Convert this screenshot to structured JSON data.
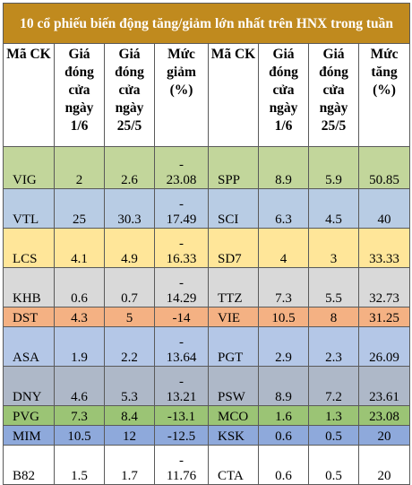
{
  "title": "10 cổ phiếu biến động tăng/giảm lớn nhất trên HNX trong tuần",
  "headers": [
    "Mã CK",
    "Giá đóng cửa ngày 1/6",
    "Giá đóng cửa ngày 25/5",
    "Mức giảm (%)",
    "Mã CK",
    "Giá đóng cửa ngày 1/6",
    "Giá đóng cửa ngày 25/5",
    "Mức tăng (%)"
  ],
  "rows": [
    {
      "dec_code": "VIG",
      "dec_close_1_6": "2",
      "dec_close_25_5": "2.6",
      "dec_dash": "-",
      "dec_pct": "23.08",
      "inc_code": "SPP",
      "inc_close_1_6": "8.9",
      "inc_close_25_5": "5.9",
      "inc_pct": "50.85",
      "color": "#c2d69b"
    },
    {
      "dec_code": "VTL",
      "dec_close_1_6": "25",
      "dec_close_25_5": "30.3",
      "dec_dash": "-",
      "dec_pct": "17.49",
      "inc_code": "SCI",
      "inc_close_1_6": "6.3",
      "inc_close_25_5": "4.5",
      "inc_pct": "40",
      "color": "#b8cce4"
    },
    {
      "dec_code": "LCS",
      "dec_close_1_6": "4.1",
      "dec_close_25_5": "4.9",
      "dec_dash": "-",
      "dec_pct": "16.33",
      "inc_code": "SD7",
      "inc_close_1_6": "4",
      "inc_close_25_5": "3",
      "inc_pct": "33.33",
      "color": "#ffe699"
    },
    {
      "dec_code": "KHB",
      "dec_close_1_6": "0.6",
      "dec_close_25_5": "0.7",
      "dec_dash": "-",
      "dec_pct": "14.29",
      "inc_code": "TTZ",
      "inc_close_1_6": "7.3",
      "inc_close_25_5": "5.5",
      "inc_pct": "32.73",
      "color": "#d9d9d9"
    },
    {
      "dec_code": "DST",
      "dec_close_1_6": "4.3",
      "dec_close_25_5": "5",
      "dec_dash": "",
      "dec_pct": "-14",
      "inc_code": "VIE",
      "inc_close_1_6": "10.5",
      "inc_close_25_5": "8",
      "inc_pct": "31.25",
      "color": "#f4b183"
    },
    {
      "dec_code": "ASA",
      "dec_close_1_6": "1.9",
      "dec_close_25_5": "2.2",
      "dec_dash": "-",
      "dec_pct": "13.64",
      "inc_code": "PGT",
      "inc_close_1_6": "2.9",
      "inc_close_25_5": "2.3",
      "inc_pct": "26.09",
      "color": "#b4c7e7"
    },
    {
      "dec_code": "DNY",
      "dec_close_1_6": "4.6",
      "dec_close_25_5": "5.3",
      "dec_dash": "-",
      "dec_pct": "13.21",
      "inc_code": "PSW",
      "inc_close_1_6": "8.9",
      "inc_close_25_5": "7.2",
      "inc_pct": "23.61",
      "color": "#aeb8c8"
    },
    {
      "dec_code": "PVG",
      "dec_close_1_6": "7.3",
      "dec_close_25_5": "8.4",
      "dec_dash": "",
      "dec_pct": "-13.1",
      "inc_code": "MCO",
      "inc_close_1_6": "1.6",
      "inc_close_25_5": "1.3",
      "inc_pct": "23.08",
      "color": "#9bc475"
    },
    {
      "dec_code": "MIM",
      "dec_close_1_6": "10.5",
      "dec_close_25_5": "12",
      "dec_dash": "",
      "dec_pct": "-12.5",
      "inc_code": "KSK",
      "inc_close_1_6": "0.6",
      "inc_close_25_5": "0.5",
      "inc_pct": "20",
      "color": "#8ea9db"
    },
    {
      "dec_code": "B82",
      "dec_close_1_6": "1.5",
      "dec_close_25_5": "1.7",
      "dec_dash": "-",
      "dec_pct": "11.76",
      "inc_code": "CTA",
      "inc_close_1_6": "0.6",
      "inc_close_25_5": "0.5",
      "inc_pct": "20",
      "color": "#ffffff"
    }
  ]
}
